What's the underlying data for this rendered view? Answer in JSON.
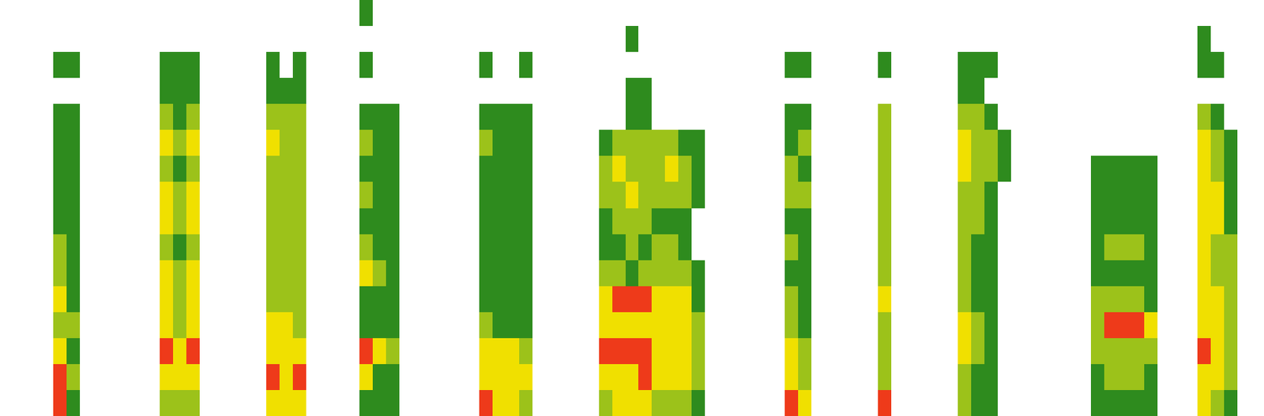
{
  "chart_data": {
    "type": "heatmap",
    "tick_labels": false,
    "zlim": [
      0,
      4
    ],
    "cells": [
      [
        0,
        0,
        0,
        0,
        0,
        0,
        0,
        0,
        0,
        0,
        0,
        0,
        0,
        0,
        0,
        0
      ],
      [
        0,
        0,
        0,
        0,
        0,
        0,
        0,
        0,
        0,
        0,
        0,
        0,
        0,
        0,
        0,
        0
      ],
      [
        0,
        0,
        0,
        0,
        0,
        0,
        0,
        0,
        0,
        0,
        0,
        0,
        0,
        0,
        0,
        0
      ],
      [
        0,
        0,
        0,
        0,
        0,
        0,
        0,
        0,
        0,
        0,
        0,
        0,
        0,
        0,
        0,
        0
      ],
      [
        0,
        0,
        1,
        0,
        1,
        1,
        1,
        1,
        1,
        2,
        2,
        3,
        2,
        3,
        4,
        4
      ],
      [
        0,
        0,
        1,
        0,
        1,
        1,
        1,
        1,
        1,
        1,
        1,
        1,
        2,
        1,
        2,
        1
      ],
      [
        0,
        0,
        0,
        0,
        0,
        0,
        0,
        0,
        0,
        0,
        0,
        0,
        0,
        0,
        0,
        0
      ],
      [
        0,
        0,
        0,
        0,
        0,
        0,
        0,
        0,
        0,
        0,
        0,
        0,
        0,
        0,
        0,
        0
      ],
      [
        0,
        0,
        0,
        0,
        0,
        0,
        0,
        0,
        0,
        0,
        0,
        0,
        0,
        0,
        0,
        0
      ],
      [
        0,
        0,
        0,
        0,
        0,
        0,
        0,
        0,
        0,
        0,
        0,
        0,
        0,
        0,
        0,
        0
      ],
      [
        0,
        0,
        0,
        0,
        0,
        0,
        0,
        0,
        0,
        0,
        0,
        0,
        0,
        0,
        0,
        0
      ],
      [
        0,
        0,
        0,
        0,
        0,
        0,
        0,
        0,
        0,
        0,
        0,
        0,
        0,
        0,
        0,
        0
      ],
      [
        0,
        0,
        1,
        1,
        2,
        3,
        2,
        3,
        3,
        2,
        3,
        3,
        3,
        4,
        3,
        2
      ],
      [
        0,
        0,
        1,
        1,
        1,
        2,
        1,
        2,
        2,
        1,
        2,
        2,
        2,
        3,
        3,
        2
      ],
      [
        0,
        0,
        1,
        1,
        2,
        3,
        2,
        3,
        3,
        2,
        3,
        3,
        3,
        4,
        3,
        2
      ],
      [
        0,
        0,
        0,
        0,
        0,
        0,
        0,
        0,
        0,
        0,
        0,
        0,
        0,
        0,
        0,
        0
      ],
      [
        0,
        0,
        0,
        0,
        0,
        0,
        0,
        0,
        0,
        0,
        0,
        0,
        0,
        0,
        0,
        0
      ],
      [
        0,
        0,
        0,
        0,
        0,
        0,
        0,
        0,
        0,
        0,
        0,
        0,
        0,
        0,
        0,
        0
      ],
      [
        0,
        0,
        0,
        0,
        0,
        0,
        0,
        0,
        0,
        0,
        0,
        0,
        0,
        0,
        0,
        0
      ],
      [
        0,
        0,
        0,
        0,
        0,
        0,
        0,
        0,
        0,
        0,
        0,
        0,
        0,
        0,
        0,
        0
      ],
      [
        0,
        0,
        1,
        1,
        2,
        3,
        2,
        2,
        2,
        2,
        2,
        2,
        3,
        3,
        4,
        3
      ],
      [
        0,
        0,
        0,
        1,
        2,
        2,
        2,
        2,
        2,
        2,
        2,
        2,
        3,
        3,
        3,
        3
      ],
      [
        0,
        0,
        1,
        1,
        2,
        2,
        2,
        2,
        2,
        2,
        2,
        2,
        2,
        3,
        4,
        3
      ],
      [
        0,
        0,
        0,
        0,
        0,
        0,
        0,
        0,
        0,
        0,
        0,
        0,
        0,
        0,
        0,
        0
      ],
      [
        0,
        0,
        0,
        0,
        0,
        0,
        0,
        0,
        0,
        0,
        0,
        0,
        0,
        0,
        0,
        0
      ],
      [
        0,
        0,
        0,
        0,
        0,
        0,
        0,
        0,
        0,
        0,
        0,
        0,
        0,
        0,
        0,
        0
      ],
      [
        0,
        0,
        0,
        0,
        0,
        0,
        0,
        0,
        0,
        0,
        0,
        0,
        0,
        0,
        0,
        0
      ],
      [
        1,
        0,
        1,
        0,
        1,
        2,
        1,
        2,
        1,
        2,
        3,
        1,
        1,
        4,
        3,
        1
      ],
      [
        0,
        0,
        0,
        0,
        1,
        1,
        1,
        1,
        1,
        1,
        2,
        1,
        1,
        3,
        1,
        1
      ],
      [
        0,
        0,
        0,
        0,
        1,
        1,
        1,
        1,
        1,
        1,
        1,
        1,
        1,
        2,
        1,
        1
      ],
      [
        0,
        0,
        0,
        0,
        0,
        0,
        0,
        0,
        0,
        0,
        0,
        0,
        0,
        0,
        0,
        0
      ],
      [
        0,
        0,
        0,
        0,
        0,
        0,
        0,
        0,
        0,
        0,
        0,
        0,
        0,
        0,
        0,
        0
      ],
      [
        0,
        0,
        0,
        0,
        0,
        0,
        0,
        0,
        0,
        0,
        0,
        0,
        0,
        0,
        0,
        0
      ],
      [
        0,
        0,
        0,
        0,
        0,
        0,
        0,
        0,
        0,
        0,
        0,
        0,
        0,
        0,
        0,
        0
      ],
      [
        0,
        0,
        0,
        0,
        0,
        0,
        0,
        0,
        0,
        0,
        0,
        0,
        0,
        0,
        0,
        0
      ],
      [
        0,
        0,
        0,
        0,
        0,
        0,
        0,
        0,
        0,
        0,
        0,
        0,
        0,
        0,
        0,
        0
      ],
      [
        0,
        0,
        1,
        0,
        1,
        2,
        1,
        1,
        1,
        1,
        1,
        1,
        2,
        3,
        3,
        4
      ],
      [
        0,
        0,
        0,
        0,
        1,
        1,
        1,
        1,
        1,
        1,
        1,
        1,
        1,
        3,
        3,
        3
      ],
      [
        0,
        0,
        0,
        0,
        1,
        1,
        1,
        1,
        1,
        1,
        1,
        1,
        1,
        3,
        3,
        3
      ],
      [
        0,
        0,
        1,
        0,
        1,
        1,
        1,
        1,
        1,
        1,
        1,
        1,
        1,
        2,
        3,
        2
      ],
      [
        0,
        0,
        0,
        0,
        0,
        0,
        0,
        0,
        0,
        0,
        0,
        0,
        0,
        0,
        0,
        0
      ],
      [
        0,
        0,
        0,
        0,
        0,
        0,
        0,
        0,
        0,
        0,
        0,
        0,
        0,
        0,
        0,
        0
      ],
      [
        0,
        0,
        0,
        0,
        0,
        0,
        0,
        0,
        0,
        0,
        0,
        0,
        0,
        0,
        0,
        0
      ],
      [
        0,
        0,
        0,
        0,
        0,
        0,
        0,
        0,
        0,
        0,
        0,
        0,
        0,
        0,
        0,
        0
      ],
      [
        0,
        0,
        0,
        0,
        0,
        0,
        0,
        0,
        0,
        0,
        0,
        0,
        0,
        0,
        0,
        0
      ],
      [
        0,
        0,
        0,
        0,
        0,
        1,
        2,
        2,
        1,
        1,
        2,
        3,
        3,
        4,
        3,
        2
      ],
      [
        0,
        0,
        0,
        0,
        0,
        2,
        3,
        2,
        2,
        1,
        2,
        4,
        3,
        4,
        3,
        3
      ],
      [
        0,
        1,
        0,
        1,
        1,
        2,
        2,
        3,
        2,
        2,
        1,
        4,
        3,
        4,
        3,
        3
      ],
      [
        0,
        0,
        0,
        1,
        1,
        2,
        2,
        2,
        2,
        1,
        2,
        4,
        3,
        4,
        4,
        3
      ],
      [
        0,
        0,
        0,
        0,
        0,
        2,
        2,
        2,
        1,
        2,
        2,
        3,
        3,
        3,
        3,
        2
      ],
      [
        0,
        0,
        0,
        0,
        0,
        2,
        3,
        2,
        1,
        2,
        2,
        3,
        3,
        3,
        3,
        2
      ],
      [
        0,
        0,
        0,
        0,
        0,
        1,
        2,
        2,
        1,
        1,
        2,
        3,
        3,
        3,
        3,
        2
      ],
      [
        0,
        0,
        0,
        0,
        0,
        1,
        1,
        1,
        0,
        0,
        1,
        1,
        2,
        2,
        2,
        1
      ],
      [
        0,
        0,
        0,
        0,
        0,
        0,
        0,
        0,
        0,
        0,
        0,
        0,
        0,
        0,
        0,
        0
      ],
      [
        0,
        0,
        0,
        0,
        0,
        0,
        0,
        0,
        0,
        0,
        0,
        0,
        0,
        0,
        0,
        0
      ],
      [
        0,
        0,
        0,
        0,
        0,
        0,
        0,
        0,
        0,
        0,
        0,
        0,
        0,
        0,
        0,
        0
      ],
      [
        0,
        0,
        0,
        0,
        0,
        0,
        0,
        0,
        0,
        0,
        0,
        0,
        0,
        0,
        0,
        0
      ],
      [
        0,
        0,
        0,
        0,
        0,
        0,
        0,
        0,
        0,
        0,
        0,
        0,
        0,
        0,
        0,
        0
      ],
      [
        0,
        0,
        0,
        0,
        0,
        0,
        0,
        0,
        0,
        0,
        0,
        0,
        0,
        0,
        0,
        0
      ],
      [
        0,
        0,
        1,
        0,
        1,
        1,
        2,
        2,
        1,
        2,
        1,
        2,
        2,
        3,
        3,
        4
      ],
      [
        0,
        0,
        1,
        0,
        1,
        2,
        1,
        2,
        1,
        1,
        1,
        1,
        1,
        2,
        2,
        3
      ],
      [
        0,
        0,
        0,
        0,
        0,
        0,
        0,
        0,
        0,
        0,
        0,
        0,
        0,
        0,
        0,
        0
      ],
      [
        0,
        0,
        0,
        0,
        0,
        0,
        0,
        0,
        0,
        0,
        0,
        0,
        0,
        0,
        0,
        0
      ],
      [
        0,
        0,
        0,
        0,
        0,
        0,
        0,
        0,
        0,
        0,
        0,
        0,
        0,
        0,
        0,
        0
      ],
      [
        0,
        0,
        0,
        0,
        0,
        0,
        0,
        0,
        0,
        0,
        0,
        0,
        0,
        0,
        0,
        0
      ],
      [
        0,
        0,
        0,
        0,
        0,
        0,
        0,
        0,
        0,
        0,
        0,
        0,
        0,
        0,
        0,
        0
      ],
      [
        0,
        0,
        1,
        0,
        2,
        2,
        2,
        2,
        2,
        2,
        2,
        3,
        2,
        2,
        2,
        4
      ],
      [
        0,
        0,
        0,
        0,
        0,
        0,
        0,
        0,
        0,
        0,
        0,
        0,
        0,
        0,
        0,
        0
      ],
      [
        0,
        0,
        0,
        0,
        0,
        0,
        0,
        0,
        0,
        0,
        0,
        0,
        0,
        0,
        0,
        0
      ],
      [
        0,
        0,
        0,
        0,
        0,
        0,
        0,
        0,
        0,
        0,
        0,
        0,
        0,
        0,
        0,
        0
      ],
      [
        0,
        0,
        0,
        0,
        0,
        0,
        0,
        0,
        0,
        0,
        0,
        0,
        0,
        0,
        0,
        0
      ],
      [
        0,
        0,
        0,
        0,
        0,
        0,
        0,
        0,
        0,
        0,
        0,
        0,
        0,
        0,
        0,
        0
      ],
      [
        0,
        0,
        1,
        1,
        2,
        3,
        3,
        2,
        2,
        2,
        2,
        2,
        3,
        3,
        2,
        2
      ],
      [
        0,
        0,
        1,
        1,
        2,
        2,
        2,
        2,
        2,
        1,
        1,
        1,
        2,
        2,
        1,
        1
      ],
      [
        0,
        0,
        1,
        0,
        1,
        2,
        2,
        1,
        1,
        1,
        1,
        1,
        1,
        1,
        1,
        1
      ],
      [
        0,
        0,
        0,
        0,
        0,
        1,
        1,
        0,
        0,
        0,
        0,
        0,
        0,
        0,
        0,
        0
      ],
      [
        0,
        0,
        0,
        0,
        0,
        0,
        0,
        0,
        0,
        0,
        0,
        0,
        0,
        0,
        0,
        0
      ],
      [
        0,
        0,
        0,
        0,
        0,
        0,
        0,
        0,
        0,
        0,
        0,
        0,
        0,
        0,
        0,
        0
      ],
      [
        0,
        0,
        0,
        0,
        0,
        0,
        0,
        0,
        0,
        0,
        0,
        0,
        0,
        0,
        0,
        0
      ],
      [
        0,
        0,
        0,
        0,
        0,
        0,
        0,
        0,
        0,
        0,
        0,
        0,
        0,
        0,
        0,
        0
      ],
      [
        0,
        0,
        0,
        0,
        0,
        0,
        0,
        0,
        0,
        0,
        0,
        0,
        0,
        0,
        0,
        0
      ],
      [
        0,
        0,
        0,
        0,
        0,
        0,
        0,
        0,
        0,
        0,
        0,
        0,
        0,
        0,
        0,
        0
      ],
      [
        0,
        0,
        0,
        0,
        0,
        0,
        1,
        1,
        1,
        1,
        1,
        2,
        2,
        2,
        1,
        1
      ],
      [
        0,
        0,
        0,
        0,
        0,
        0,
        1,
        1,
        1,
        2,
        1,
        2,
        4,
        2,
        2,
        1
      ],
      [
        0,
        0,
        0,
        0,
        0,
        0,
        1,
        1,
        1,
        2,
        1,
        2,
        4,
        2,
        2,
        1
      ],
      [
        0,
        0,
        0,
        0,
        0,
        0,
        1,
        1,
        1,
        2,
        1,
        2,
        4,
        2,
        2,
        1
      ],
      [
        0,
        0,
        0,
        0,
        0,
        0,
        1,
        1,
        1,
        1,
        1,
        1,
        3,
        2,
        1,
        1
      ],
      [
        0,
        0,
        0,
        0,
        0,
        0,
        0,
        0,
        0,
        0,
        0,
        0,
        0,
        0,
        0,
        0
      ],
      [
        0,
        0,
        0,
        0,
        0,
        0,
        0,
        0,
        0,
        0,
        0,
        0,
        0,
        0,
        0,
        0
      ],
      [
        0,
        0,
        0,
        0,
        0,
        0,
        0,
        0,
        0,
        0,
        0,
        0,
        0,
        0,
        0,
        0
      ],
      [
        0,
        1,
        1,
        0,
        2,
        3,
        3,
        3,
        3,
        3,
        3,
        3,
        3,
        4,
        3,
        3
      ],
      [
        0,
        0,
        1,
        0,
        1,
        2,
        2,
        3,
        3,
        2,
        2,
        3,
        3,
        3,
        3,
        2
      ],
      [
        0,
        0,
        0,
        0,
        0,
        1,
        1,
        1,
        1,
        2,
        2,
        2,
        2,
        2,
        2,
        1
      ],
      [
        0,
        0,
        0,
        0,
        0,
        0,
        0,
        0,
        0,
        0,
        0,
        0,
        0,
        0,
        0,
        0
      ],
      [
        0,
        0,
        0,
        0,
        0,
        0,
        0,
        0,
        0,
        0,
        0,
        0,
        0,
        0,
        0,
        0
      ]
    ]
  }
}
